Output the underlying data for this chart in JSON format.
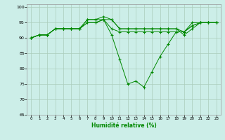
{
  "xlabel": "Humidité relative (%)",
  "background_color": "#cceee8",
  "grid_color": "#aaccbb",
  "line_color": "#008800",
  "marker": "+",
  "xlim": [
    -0.5,
    23.5
  ],
  "ylim": [
    65,
    101
  ],
  "yticks": [
    65,
    70,
    75,
    80,
    85,
    90,
    95,
    100
  ],
  "xticks": [
    0,
    1,
    2,
    3,
    4,
    5,
    6,
    7,
    8,
    9,
    10,
    11,
    12,
    13,
    14,
    15,
    16,
    17,
    18,
    19,
    20,
    21,
    22,
    23
  ],
  "series": [
    [
      90,
      91,
      91,
      93,
      93,
      93,
      93,
      95,
      95,
      96,
      91,
      83,
      75,
      76,
      74,
      79,
      84,
      88,
      92,
      92,
      94,
      95,
      95,
      95
    ],
    [
      90,
      91,
      91,
      93,
      93,
      93,
      93,
      95,
      95,
      96,
      93,
      92,
      92,
      92,
      92,
      92,
      92,
      92,
      92,
      92,
      95,
      95,
      95,
      95
    ],
    [
      90,
      91,
      91,
      93,
      93,
      93,
      93,
      96,
      96,
      97,
      96,
      93,
      93,
      93,
      93,
      93,
      93,
      93,
      93,
      92,
      94,
      95,
      95,
      95
    ],
    [
      90,
      91,
      91,
      93,
      93,
      93,
      93,
      96,
      96,
      96,
      96,
      93,
      93,
      93,
      93,
      93,
      93,
      93,
      93,
      91,
      93,
      95,
      95,
      95
    ]
  ]
}
